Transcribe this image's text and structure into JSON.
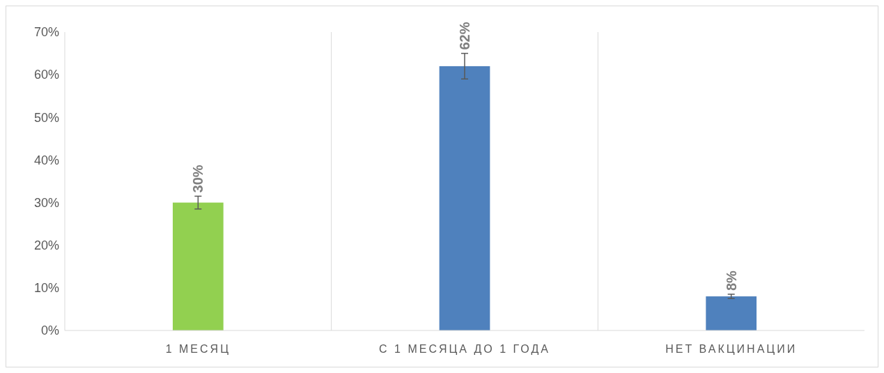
{
  "chart_data": {
    "type": "bar",
    "categories": [
      "1 МЕСЯЦ",
      "С 1 МЕСЯЦА ДО 1 ГОДА",
      "НЕТ ВАКЦИНАЦИИ"
    ],
    "values": [
      30,
      62,
      8
    ],
    "colors": [
      "#92d050",
      "#4f81bd",
      "#4f81bd"
    ],
    "errors": [
      1.5,
      3,
      0.5
    ],
    "value_labels": [
      "30%",
      "62%",
      "8%"
    ],
    "ylim": [
      0,
      70
    ],
    "yticks": [
      {
        "value": 0,
        "label": "0%"
      },
      {
        "value": 10,
        "label": "10%"
      },
      {
        "value": 20,
        "label": "20%"
      },
      {
        "value": 30,
        "label": "30%"
      },
      {
        "value": 40,
        "label": "40%"
      },
      {
        "value": 50,
        "label": "50%"
      },
      {
        "value": 60,
        "label": "60%"
      },
      {
        "value": 70,
        "label": "70%"
      }
    ],
    "grid": "x"
  }
}
